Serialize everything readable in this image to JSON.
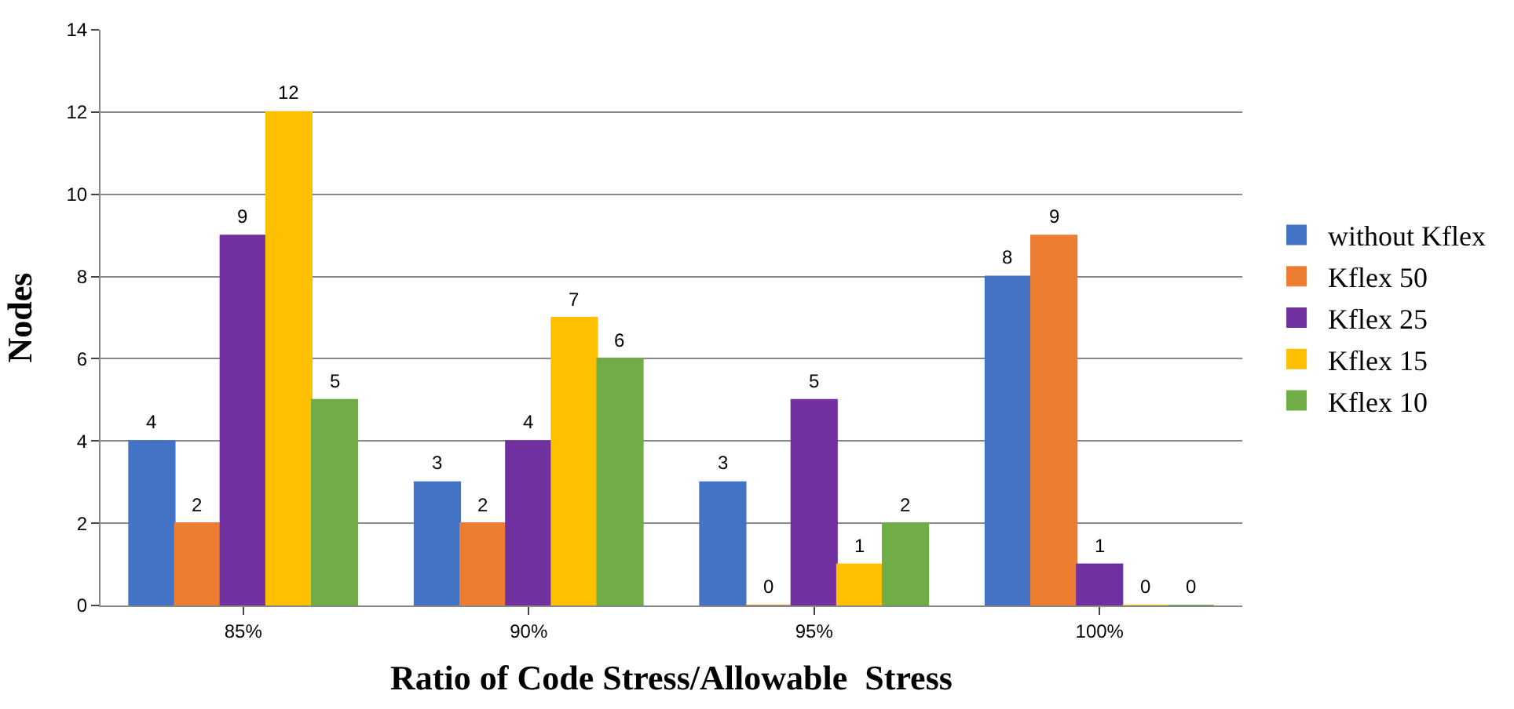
{
  "chart_data": {
    "type": "bar",
    "xlabel": "Ratio of Code Stress/Allowable  Stress",
    "ylabel": "Nodes",
    "categories": [
      "85%",
      "90%",
      "95%",
      "100%"
    ],
    "series": [
      {
        "name": "without Kflex",
        "color": "#4472c4",
        "values": [
          4,
          3,
          3,
          8
        ]
      },
      {
        "name": "Kflex 50",
        "color": "#ed7d31",
        "values": [
          2,
          2,
          0,
          9
        ]
      },
      {
        "name": "Kflex 25",
        "color": "#7030a0",
        "values": [
          9,
          4,
          5,
          1
        ]
      },
      {
        "name": "Kflex 15",
        "color": "#ffc000",
        "values": [
          12,
          7,
          1,
          0
        ]
      },
      {
        "name": "Kflex 10",
        "color": "#70ad47",
        "values": [
          5,
          6,
          2,
          0
        ]
      }
    ],
    "ylim": [
      0,
      14
    ],
    "yticks": [
      0,
      2,
      4,
      6,
      8,
      10,
      12,
      14
    ],
    "grid": "y",
    "legend": "right",
    "data_labels": true
  }
}
